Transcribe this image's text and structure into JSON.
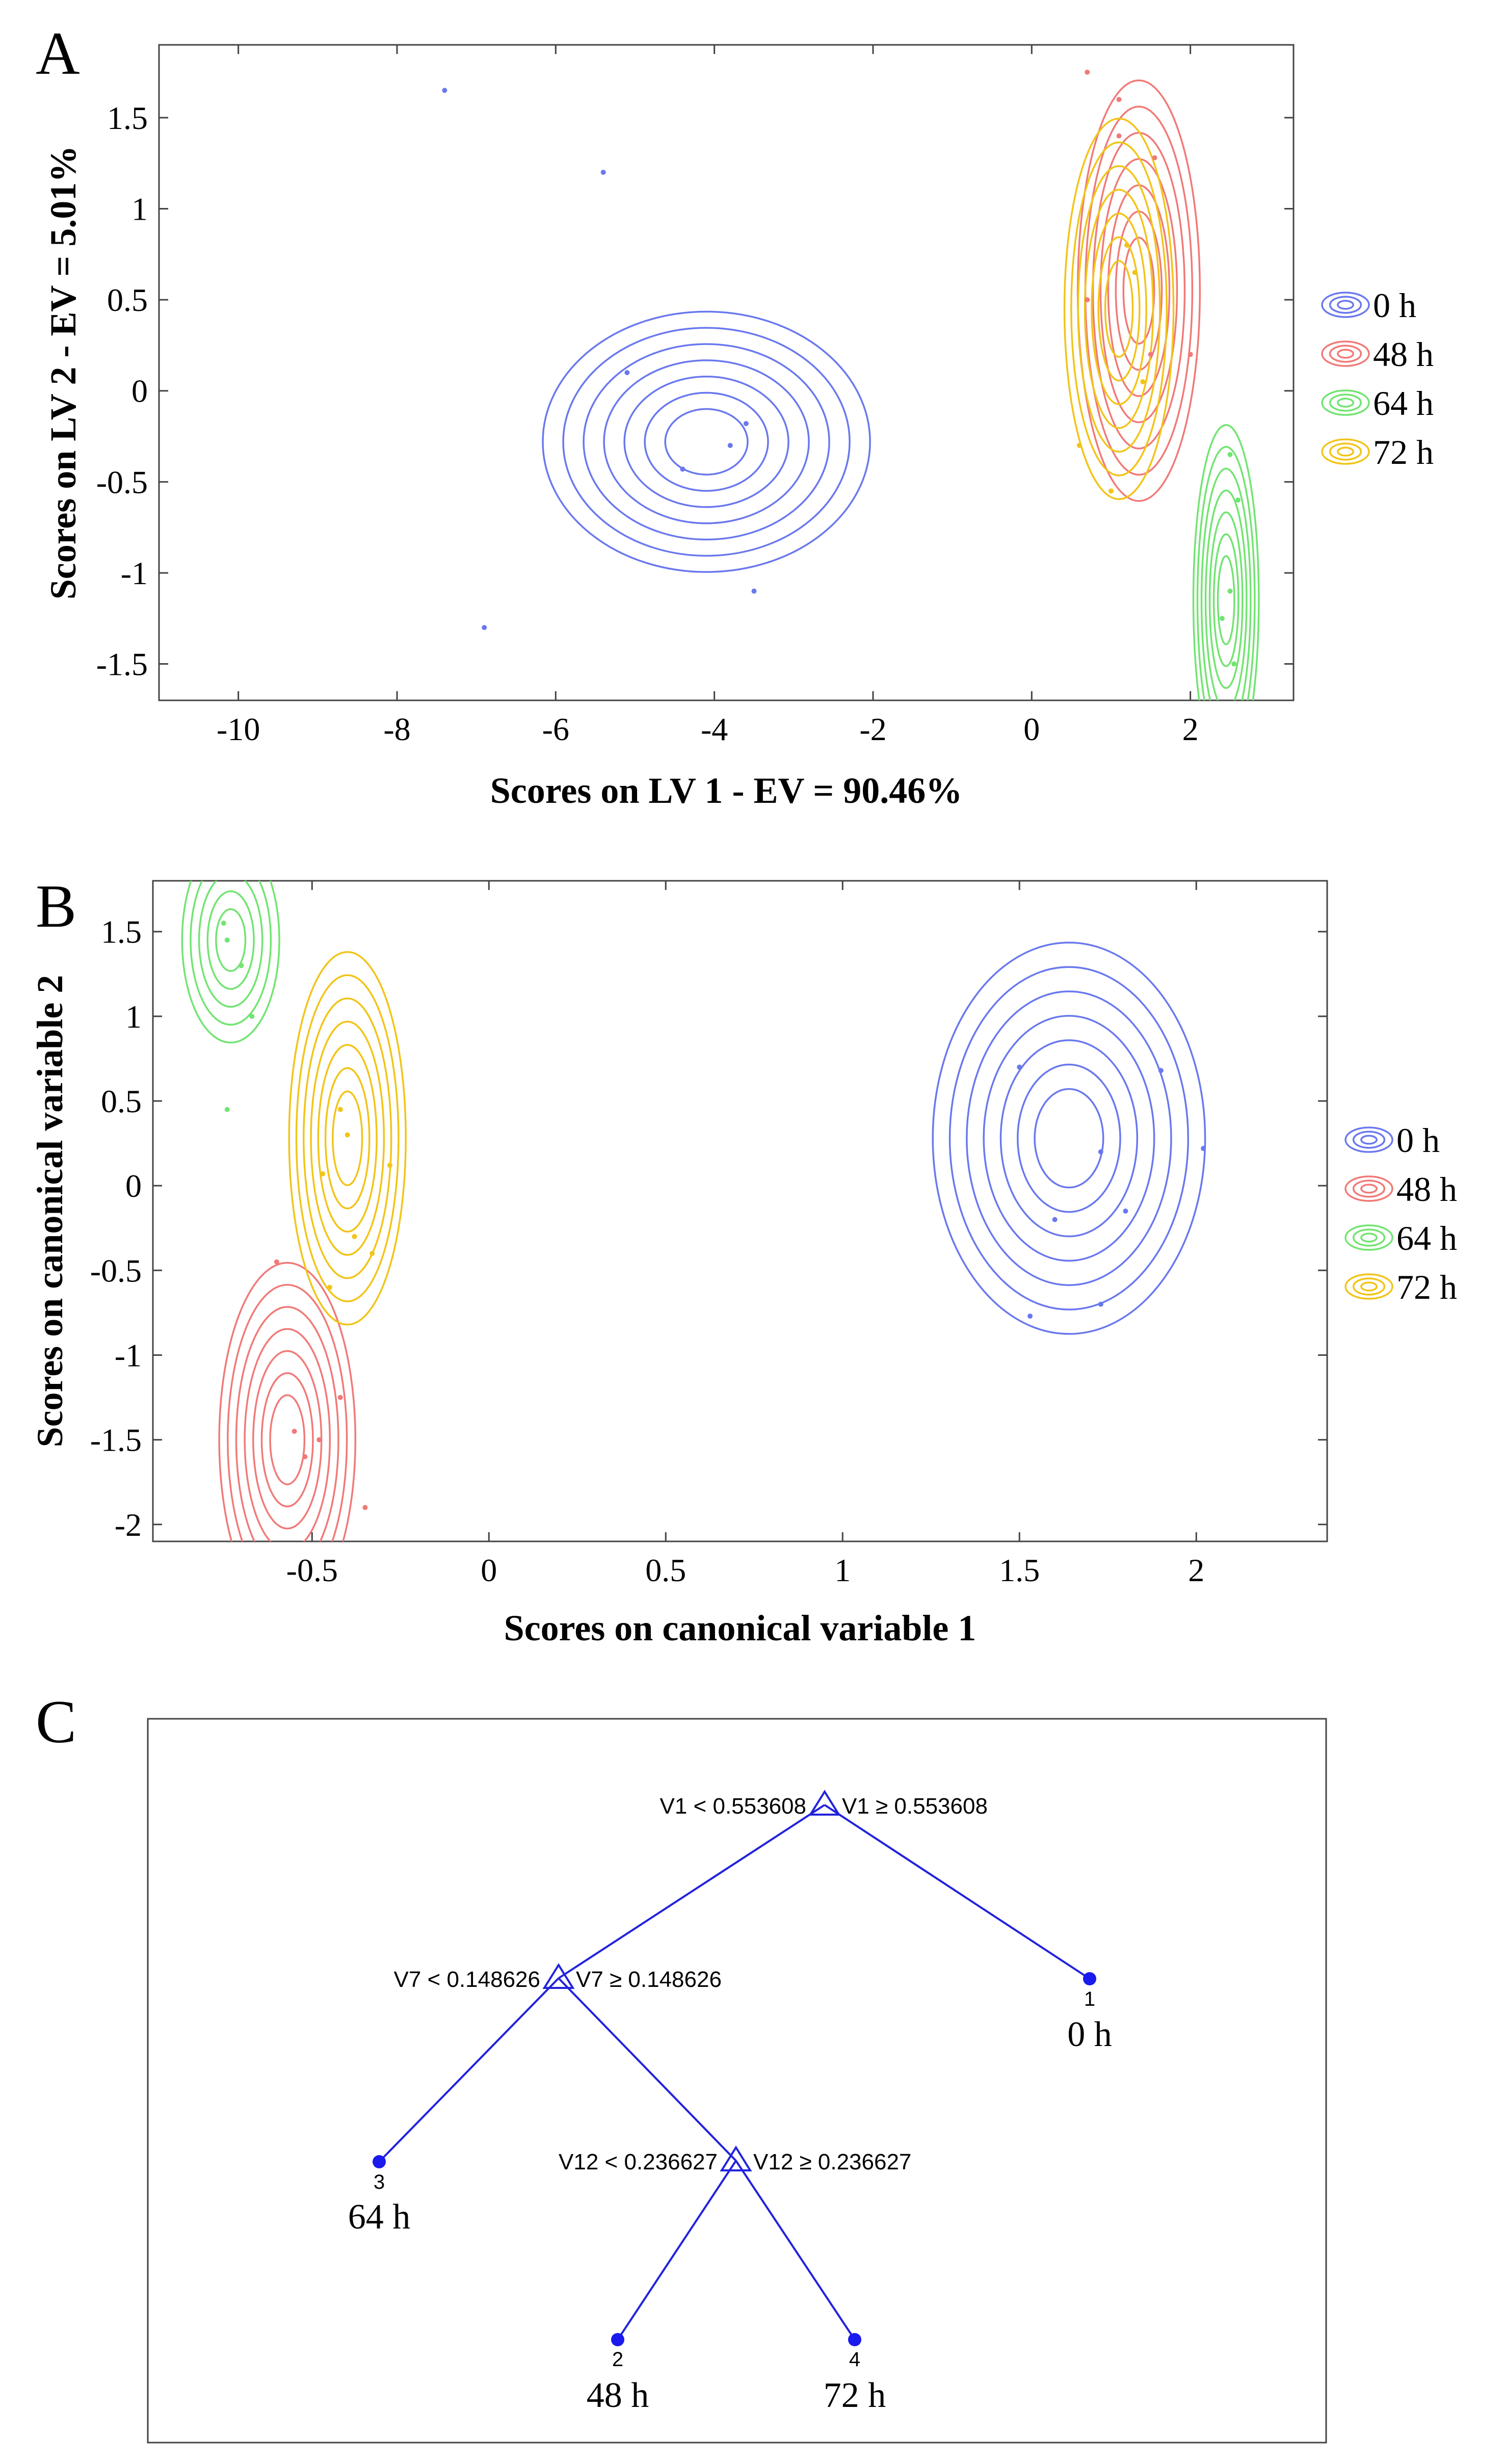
{
  "colors": {
    "0 h": "#6a78ee",
    "48 h": "#f07a78",
    "64 h": "#72e472",
    "72 h": "#f2c418",
    "tree": "#2222dd"
  },
  "panels": {
    "a": "A",
    "b": "B",
    "c": "C"
  },
  "chart_data": [
    {
      "panel": "A",
      "type": "contour",
      "xlabel": "Scores on LV 1 - EV = 90.46%",
      "ylabel": "Scores on LV 2 - EV = 5.01%",
      "xlim": [
        -11,
        3.3
      ],
      "ylim": [
        -1.7,
        1.9
      ],
      "xticks": [
        -10,
        -8,
        -6,
        -4,
        -2,
        0,
        2
      ],
      "yticks": [
        -1.5,
        -1,
        -0.5,
        0,
        0.5,
        1,
        1.5
      ],
      "xtick_labels": [
        "-10",
        "-8",
        "-6",
        "-4",
        "-2",
        "0",
        "2"
      ],
      "ytick_labels": [
        "-1.5",
        "-1",
        "-0.5",
        "0",
        "0.5",
        "1",
        "1.5"
      ],
      "legend": [
        "0 h",
        "48 h",
        "64 h",
        "72 h"
      ],
      "series": [
        {
          "name": "0 h",
          "points": [
            [
              -5.1,
              0.1
            ],
            [
              -4.4,
              -0.43
            ],
            [
              -3.6,
              -0.18
            ],
            [
              -3.8,
              -0.3
            ],
            [
              -6.9,
              -1.3
            ],
            [
              -3.5,
              -1.1
            ],
            [
              -5.4,
              1.2
            ],
            [
              -7.4,
              1.65
            ]
          ],
          "peak": [
            -4.1,
            -0.28
          ],
          "spread": [
            0.75,
            0.26
          ],
          "contour_count": 7
        },
        {
          "name": "48 h",
          "points": [
            [
              0.7,
              1.75
            ],
            [
              1.1,
              1.6
            ],
            [
              1.1,
              1.4
            ],
            [
              1.55,
              1.28
            ],
            [
              0.7,
              0.5
            ],
            [
              1.5,
              0.2
            ],
            [
              2.0,
              0.2
            ]
          ],
          "peak": [
            1.35,
            0.55
          ],
          "spread": [
            0.28,
            0.42
          ],
          "contour_count": 7
        },
        {
          "name": "64 h",
          "points": [
            [
              2.5,
              -0.35
            ],
            [
              2.6,
              -0.6
            ],
            [
              2.5,
              -1.1
            ],
            [
              2.4,
              -1.25
            ],
            [
              2.55,
              -1.5
            ]
          ],
          "peak": [
            2.45,
            -1.15
          ],
          "spread": [
            0.15,
            0.35
          ],
          "contour_count": 7
        },
        {
          "name": "72 h",
          "points": [
            [
              1.2,
              0.8
            ],
            [
              1.3,
              0.65
            ],
            [
              0.6,
              -0.3
            ],
            [
              1.0,
              -0.55
            ],
            [
              1.4,
              0.05
            ]
          ],
          "peak": [
            1.1,
            0.45
          ],
          "spread": [
            0.25,
            0.38
          ],
          "contour_count": 7
        }
      ]
    },
    {
      "panel": "B",
      "type": "contour",
      "xlabel": "Scores on canonical variable 1",
      "ylabel": "Scores on canonical variable 2",
      "xlim": [
        -0.95,
        2.37
      ],
      "ylim": [
        -2.1,
        1.8
      ],
      "xticks": [
        -0.5,
        0,
        0.5,
        1,
        1.5,
        2
      ],
      "yticks": [
        -2,
        -1.5,
        -1,
        -0.5,
        0,
        0.5,
        1,
        1.5
      ],
      "xtick_labels": [
        "-0.5",
        "0",
        "0.5",
        "1",
        "1.5",
        "2"
      ],
      "ytick_labels": [
        "-2",
        "-1.5",
        "-1",
        "-0.5",
        "0",
        "0.5",
        "1",
        "1.5"
      ],
      "legend": [
        "0 h",
        "48 h",
        "64 h",
        "72 h"
      ],
      "series": [
        {
          "name": "0 h",
          "points": [
            [
              1.5,
              0.7
            ],
            [
              1.73,
              0.2
            ],
            [
              1.6,
              -0.2
            ],
            [
              1.8,
              -0.15
            ],
            [
              1.73,
              -0.7
            ],
            [
              1.53,
              -0.77
            ],
            [
              1.9,
              0.68
            ],
            [
              2.02,
              0.22
            ]
          ],
          "peak": [
            1.64,
            0.28
          ],
          "spread": [
            0.14,
            0.42
          ],
          "contour_count": 7
        },
        {
          "name": "48 h",
          "points": [
            [
              -0.55,
              -1.45
            ],
            [
              -0.52,
              -1.6
            ],
            [
              -0.42,
              -1.25
            ],
            [
              -0.35,
              -1.9
            ],
            [
              -0.48,
              -1.5
            ],
            [
              -0.6,
              -0.45
            ]
          ],
          "peak": [
            -0.57,
            -1.5
          ],
          "spread": [
            0.07,
            0.38
          ],
          "contour_count": 7
        },
        {
          "name": "64 h",
          "points": [
            [
              -0.74,
              1.45
            ],
            [
              -0.7,
              1.3
            ],
            [
              -0.74,
              0.45
            ],
            [
              -0.67,
              1.0
            ],
            [
              -0.75,
              1.55
            ]
          ],
          "peak": [
            -0.73,
            1.45
          ],
          "spread": [
            0.05,
            0.22
          ],
          "contour_count": 5
        },
        {
          "name": "72 h",
          "points": [
            [
              -0.42,
              0.45
            ],
            [
              -0.47,
              0.07
            ],
            [
              -0.4,
              0.3
            ],
            [
              -0.28,
              0.12
            ],
            [
              -0.33,
              -0.4
            ],
            [
              -0.38,
              -0.3
            ],
            [
              -0.45,
              -0.6
            ]
          ],
          "peak": [
            -0.4,
            0.28
          ],
          "spread": [
            0.06,
            0.4
          ],
          "contour_count": 7
        }
      ]
    },
    {
      "panel": "C",
      "type": "tree",
      "nodes": [
        {
          "id": "n1",
          "left_rule": "V1 < 0.553608",
          "right_rule": "V1  ≥  0.553608"
        },
        {
          "id": "n2",
          "left_rule": "V7 < 0.148626",
          "right_rule": "V7  ≥  0.148626"
        },
        {
          "id": "n3",
          "left_rule": "V12 < 0.236627",
          "right_rule": "V12  ≥  0.236627"
        }
      ],
      "leaves": [
        {
          "id": "l1",
          "index": "1",
          "class": "0 h"
        },
        {
          "id": "l3",
          "index": "3",
          "class": "64 h"
        },
        {
          "id": "l2",
          "index": "2",
          "class": "48 h"
        },
        {
          "id": "l4",
          "index": "4",
          "class": "72 h"
        }
      ],
      "edges": [
        [
          "n1",
          "n2"
        ],
        [
          "n1",
          "l1"
        ],
        [
          "n2",
          "l3"
        ],
        [
          "n2",
          "n3"
        ],
        [
          "n3",
          "l2"
        ],
        [
          "n3",
          "l4"
        ]
      ]
    }
  ]
}
